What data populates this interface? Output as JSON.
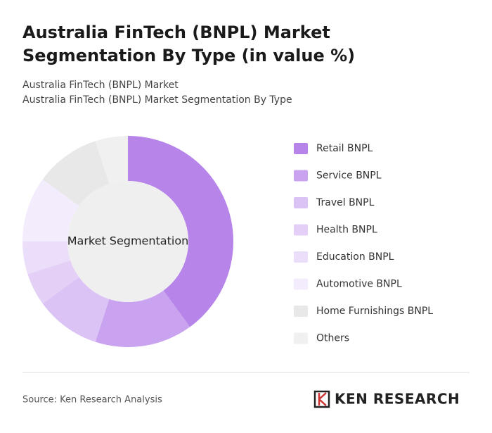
{
  "chart_data": {
    "type": "donut",
    "title": "Australia FinTech (BNPL) Market Segmentation By Type (in value %)",
    "subtitle": [
      "Australia FinTech (BNPL) Market",
      "Australia FinTech (BNPL) Market Segmentation By Type"
    ],
    "center_label": "Market Segmentation",
    "categories": [
      "Retail BNPL",
      "Service BNPL",
      "Travel BNPL",
      "Health BNPL",
      "Education BNPL",
      "Automotive BNPL",
      "Home Furnishings BNPL",
      "Others"
    ],
    "values": [
      40,
      15,
      10,
      5,
      5,
      10,
      10,
      5
    ],
    "colors": [
      "#b784e9",
      "#c9a3ef",
      "#dcc3f5",
      "#e4d0f7",
      "#ebdefa",
      "#f3ecfc",
      "#e8e8e8",
      "#f0f0f0"
    ]
  },
  "footer": {
    "source": "Source: Ken Research Analysis",
    "brand": "KEN RESEARCH"
  }
}
